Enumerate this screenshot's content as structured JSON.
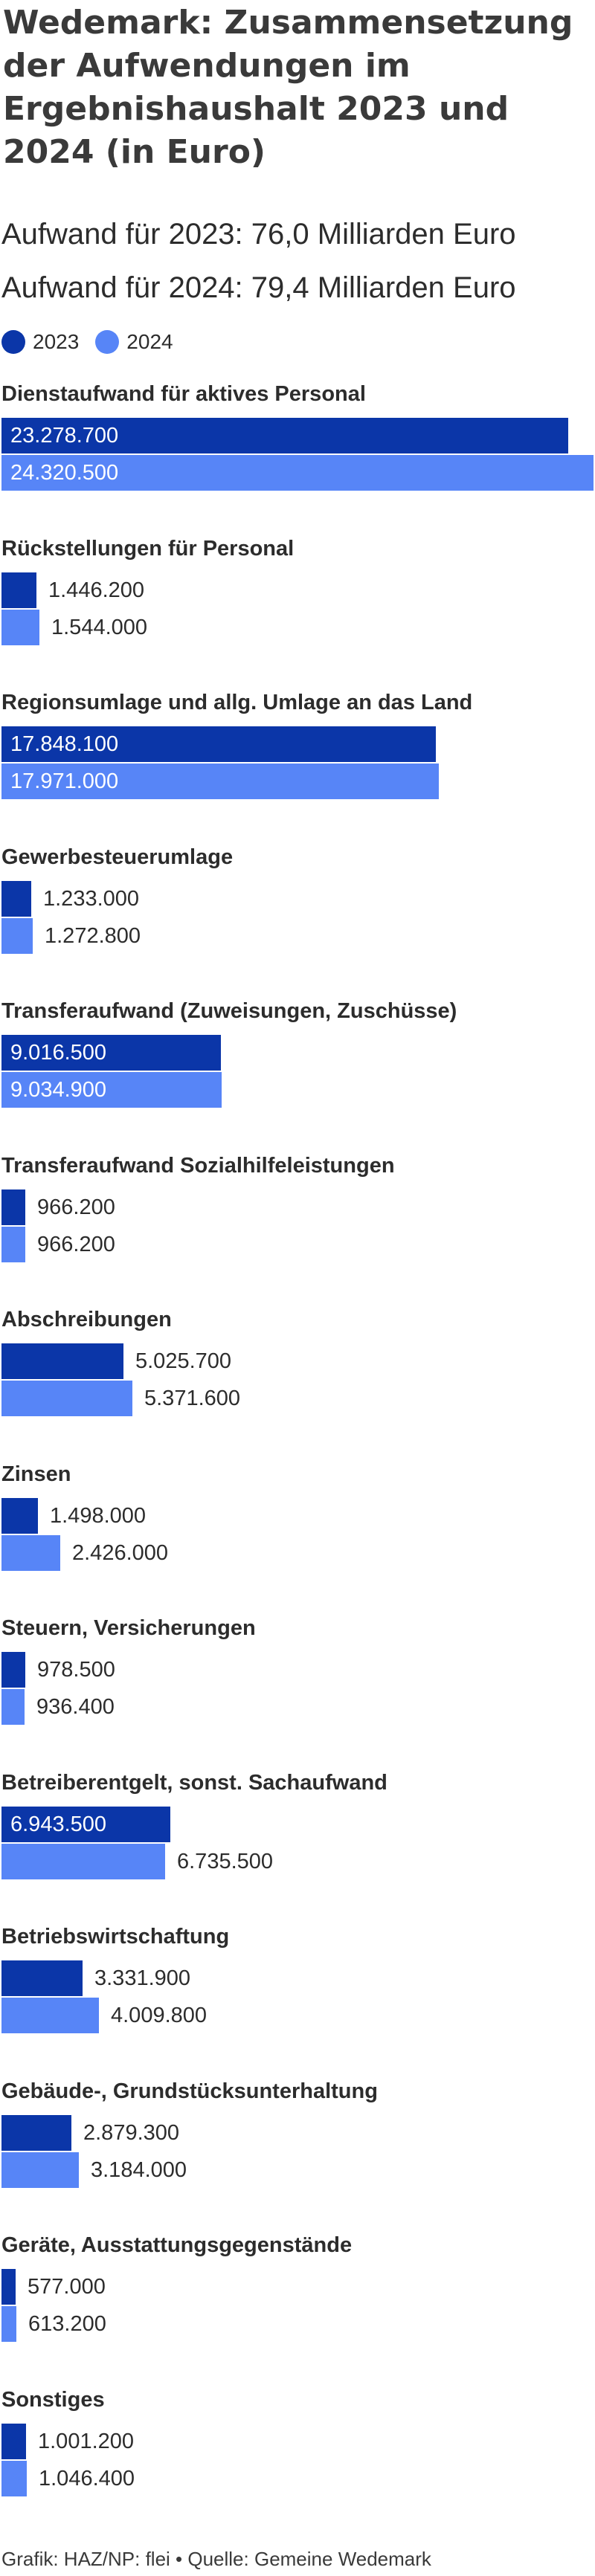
{
  "title": "Wedemark: Zusammensetzung der Aufwendungen im Ergebnishaushalt 2023 und 2024 (in Euro)",
  "subtitle_lines": [
    "Aufwand für 2023: 76,0 Milliarden Euro",
    "Aufwand für 2024: 79,4 Milliarden Euro"
  ],
  "legend": [
    {
      "label": "2023",
      "color": "#0b36a8"
    },
    {
      "label": "2024",
      "color": "#5785f7"
    }
  ],
  "footer": "Grafik: HAZ/NP: flei • Quelle: Gemeine Wedemark",
  "chart_data": {
    "type": "bar",
    "orientation": "horizontal",
    "title": "Wedemark: Zusammensetzung der Aufwendungen im Ergebnishaushalt 2023 und 2024 (in Euro)",
    "categories": [
      "Dienstaufwand für aktives Personal",
      "Rückstellungen für Personal",
      "Regionsumlage und allg. Umlage an das Land",
      "Gewerbesteuerumlage",
      "Transferaufwand (Zuweisungen, Zuschüsse)",
      "Transferaufwand Sozialhilfeleistungen",
      "Abschreibungen",
      "Zinsen",
      "Steuern, Versicherungen",
      "Betreiberentgelt, sonst. Sachaufwand",
      "Betriebswirtschaftung",
      "Gebäude-, Grundstücksunterhaltung",
      "Geräte, Ausstattungsgegenstände",
      "Sonstiges"
    ],
    "series": [
      {
        "name": "2023",
        "color": "#0b36a8",
        "values": [
          23278700,
          1446200,
          17848100,
          1233000,
          9016500,
          966200,
          5025700,
          1498000,
          978500,
          6943500,
          3331900,
          2879300,
          577000,
          1001200
        ],
        "labels": [
          "23.278.700",
          "1.446.200",
          "17.848.100",
          "1.233.000",
          "9.016.500",
          "966.200",
          "5.025.700",
          "1.498.000",
          "978.500",
          "6.943.500",
          "3.331.900",
          "2.879.300",
          "577.000",
          "1.001.200"
        ]
      },
      {
        "name": "2024",
        "color": "#5785f7",
        "values": [
          24320500,
          1544000,
          17971000,
          1272800,
          9034900,
          966200,
          5371600,
          2426000,
          936400,
          6735500,
          4009800,
          3184000,
          613200,
          1046400
        ],
        "labels": [
          "24.320.500",
          "1.544.000",
          "17.971.000",
          "1.272.800",
          "9.034.900",
          "966.200",
          "5.371.600",
          "2.426.000",
          "936.400",
          "6.735.500",
          "4.009.800",
          "3.184.000",
          "613.200",
          "1.046.400"
        ]
      }
    ],
    "xlim": [
      0,
      24320500
    ],
    "grid": false,
    "legend_position": "top-left"
  }
}
